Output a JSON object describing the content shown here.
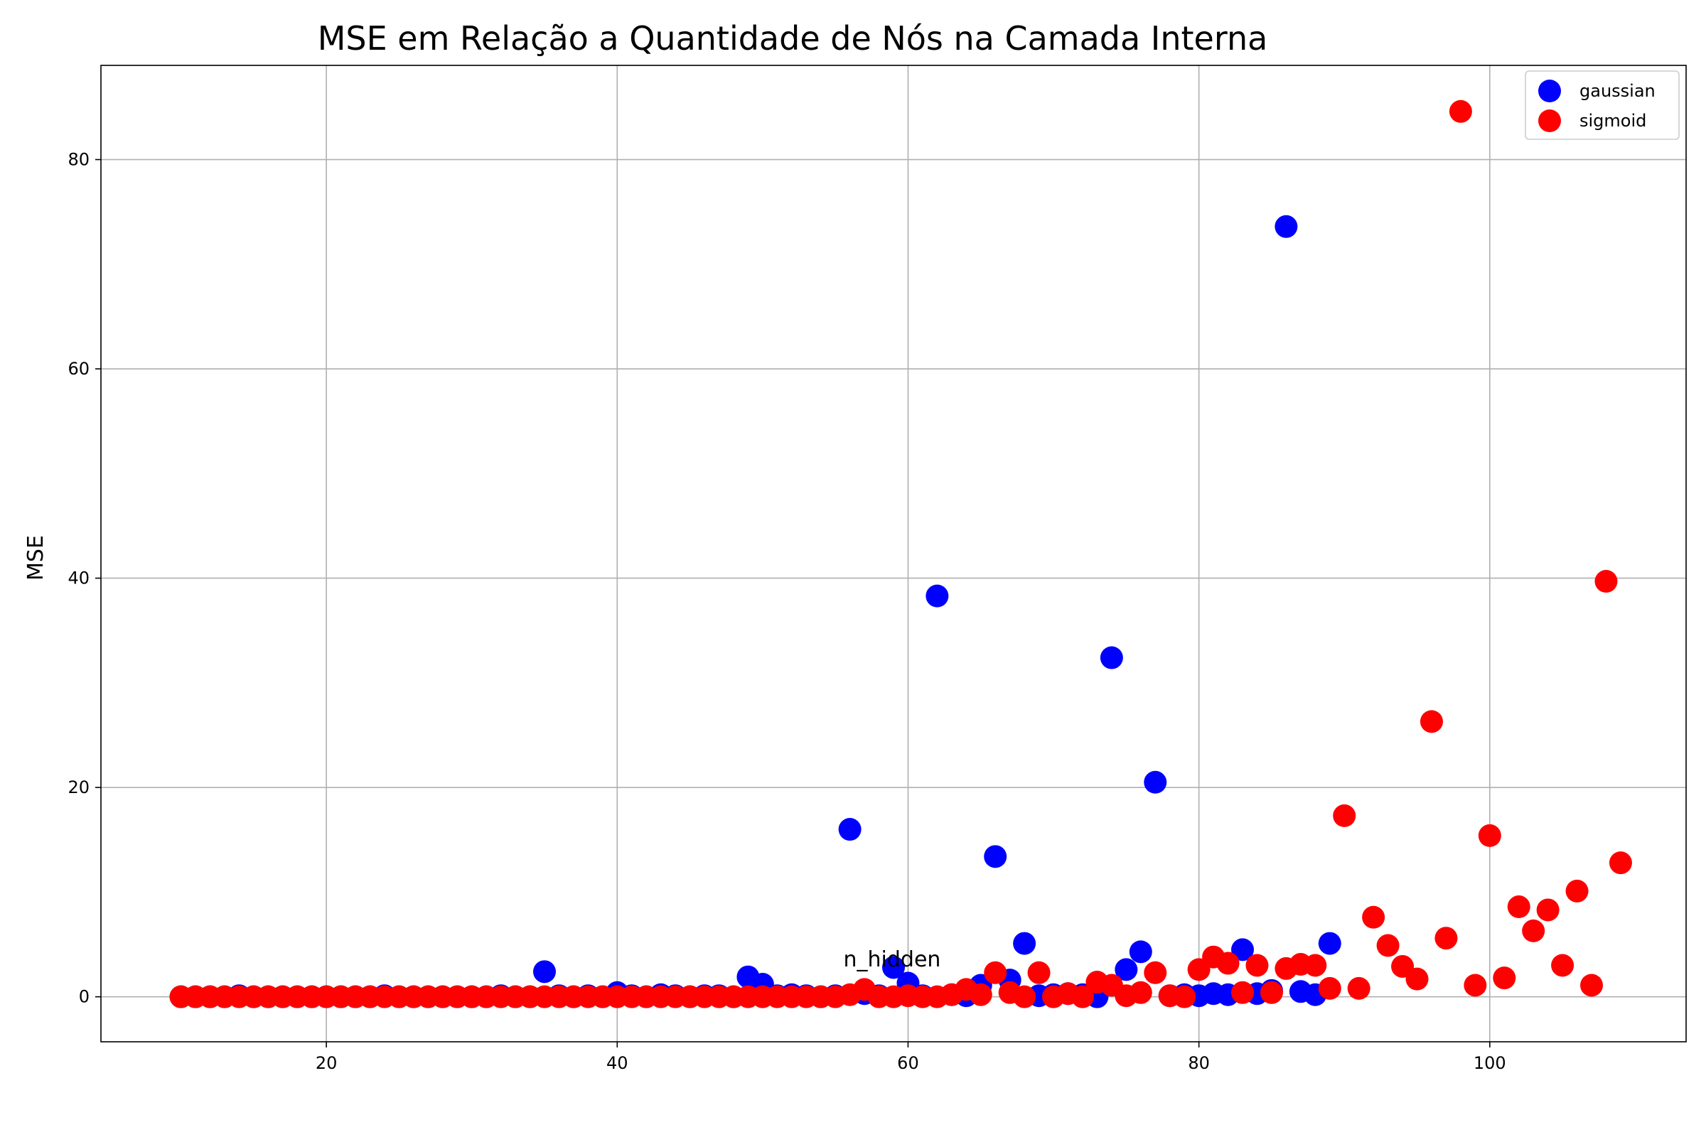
{
  "chart_data": {
    "type": "scatter",
    "title": "MSE em Relação a Quantidade de Nós na Camada Interna",
    "xlabel": "n_hidden",
    "ylabel": "MSE",
    "xlim": [
      4.5,
      113.5
    ],
    "ylim": [
      -4.3,
      89
    ],
    "xticks": [
      20,
      40,
      60,
      80,
      100
    ],
    "yticks": [
      0,
      20,
      40,
      60,
      80
    ],
    "grid": true,
    "legend_position": "top-right",
    "series": [
      {
        "name": "gaussian",
        "color": "#0000ff",
        "points": [
          [
            10,
            0
          ],
          [
            11,
            0
          ],
          [
            12,
            0
          ],
          [
            13,
            0
          ],
          [
            14,
            0.1
          ],
          [
            15,
            0
          ],
          [
            16,
            0
          ],
          [
            17,
            0
          ],
          [
            18,
            0
          ],
          [
            19,
            0
          ],
          [
            20,
            0
          ],
          [
            21,
            0
          ],
          [
            22,
            0
          ],
          [
            23,
            0
          ],
          [
            24,
            0.1
          ],
          [
            25,
            0
          ],
          [
            26,
            0
          ],
          [
            27,
            0
          ],
          [
            28,
            0
          ],
          [
            29,
            0
          ],
          [
            30,
            0
          ],
          [
            31,
            0
          ],
          [
            32,
            0.1
          ],
          [
            33,
            0
          ],
          [
            34,
            0
          ],
          [
            35,
            2.4
          ],
          [
            36,
            0.1
          ],
          [
            37,
            0
          ],
          [
            38,
            0.1
          ],
          [
            39,
            0
          ],
          [
            40,
            0.4
          ],
          [
            41,
            0.1
          ],
          [
            42,
            0
          ],
          [
            43,
            0.2
          ],
          [
            44,
            0.1
          ],
          [
            45,
            0
          ],
          [
            46,
            0.1
          ],
          [
            47,
            0.1
          ],
          [
            48,
            0
          ],
          [
            49,
            1.9
          ],
          [
            50,
            1.2
          ],
          [
            51,
            0.1
          ],
          [
            52,
            0.2
          ],
          [
            53,
            0.1
          ],
          [
            54,
            0
          ],
          [
            55,
            0.1
          ],
          [
            56,
            16.0
          ],
          [
            57,
            0.3
          ],
          [
            58,
            0.1
          ],
          [
            59,
            2.8
          ],
          [
            60,
            1.3
          ],
          [
            61,
            0.1
          ],
          [
            62,
            38.3
          ],
          [
            63,
            0.2
          ],
          [
            64,
            0.1
          ],
          [
            65,
            1.1
          ],
          [
            66,
            13.4
          ],
          [
            67,
            1.6
          ],
          [
            68,
            5.1
          ],
          [
            69,
            0.1
          ],
          [
            70,
            0.2
          ],
          [
            71,
            0.3
          ],
          [
            72,
            0.2
          ],
          [
            73,
            0
          ],
          [
            74,
            32.4
          ],
          [
            75,
            2.6
          ],
          [
            76,
            4.3
          ],
          [
            77,
            20.5
          ],
          [
            78,
            0.1
          ],
          [
            79,
            0.2
          ],
          [
            80,
            0.1
          ],
          [
            81,
            0.3
          ],
          [
            82,
            0.2
          ],
          [
            83,
            4.5
          ],
          [
            84,
            0.3
          ],
          [
            85,
            0.6
          ],
          [
            86,
            73.6
          ],
          [
            87,
            0.5
          ],
          [
            88,
            0.2
          ],
          [
            89,
            5.1
          ]
        ]
      },
      {
        "name": "sigmoid",
        "color": "#ff0000",
        "points": [
          [
            10,
            0
          ],
          [
            11,
            0
          ],
          [
            12,
            0
          ],
          [
            13,
            0
          ],
          [
            14,
            0
          ],
          [
            15,
            0
          ],
          [
            16,
            0
          ],
          [
            17,
            0
          ],
          [
            18,
            0
          ],
          [
            19,
            0
          ],
          [
            20,
            0
          ],
          [
            21,
            0
          ],
          [
            22,
            0
          ],
          [
            23,
            0
          ],
          [
            24,
            0
          ],
          [
            25,
            0
          ],
          [
            26,
            0
          ],
          [
            27,
            0
          ],
          [
            28,
            0
          ],
          [
            29,
            0
          ],
          [
            30,
            0
          ],
          [
            31,
            0
          ],
          [
            32,
            0
          ],
          [
            33,
            0
          ],
          [
            34,
            0
          ],
          [
            35,
            0
          ],
          [
            36,
            0
          ],
          [
            37,
            0
          ],
          [
            38,
            0
          ],
          [
            39,
            0
          ],
          [
            40,
            0
          ],
          [
            41,
            0
          ],
          [
            42,
            0
          ],
          [
            43,
            0
          ],
          [
            44,
            0
          ],
          [
            45,
            0
          ],
          [
            46,
            0
          ],
          [
            47,
            0
          ],
          [
            48,
            0
          ],
          [
            49,
            0
          ],
          [
            50,
            0
          ],
          [
            51,
            0
          ],
          [
            52,
            0
          ],
          [
            53,
            0
          ],
          [
            54,
            0
          ],
          [
            55,
            0
          ],
          [
            56,
            0.2
          ],
          [
            57,
            0.7
          ],
          [
            58,
            0
          ],
          [
            59,
            0
          ],
          [
            60,
            0.1
          ],
          [
            61,
            0
          ],
          [
            62,
            0
          ],
          [
            63,
            0.2
          ],
          [
            64,
            0.7
          ],
          [
            65,
            0.2
          ],
          [
            66,
            2.3
          ],
          [
            67,
            0.4
          ],
          [
            68,
            0
          ],
          [
            69,
            2.3
          ],
          [
            70,
            0
          ],
          [
            71,
            0.3
          ],
          [
            72,
            0
          ],
          [
            73,
            1.4
          ],
          [
            74,
            1.1
          ],
          [
            75,
            0.1
          ],
          [
            76,
            0.4
          ],
          [
            77,
            2.3
          ],
          [
            78,
            0.1
          ],
          [
            79,
            0
          ],
          [
            80,
            2.6
          ],
          [
            81,
            3.8
          ],
          [
            82,
            3.2
          ],
          [
            83,
            0.4
          ],
          [
            84,
            3.0
          ],
          [
            85,
            0.4
          ],
          [
            86,
            2.7
          ],
          [
            87,
            3.1
          ],
          [
            88,
            3.0
          ],
          [
            89,
            0.8
          ],
          [
            90,
            17.3
          ],
          [
            91,
            0.8
          ],
          [
            92,
            7.6
          ],
          [
            93,
            4.9
          ],
          [
            94,
            2.9
          ],
          [
            95,
            1.7
          ],
          [
            96,
            26.3
          ],
          [
            97,
            5.6
          ],
          [
            98,
            84.6
          ],
          [
            99,
            1.1
          ],
          [
            100,
            15.4
          ],
          [
            101,
            1.8
          ],
          [
            102,
            8.6
          ],
          [
            103,
            6.3
          ],
          [
            104,
            8.3
          ],
          [
            105,
            3.0
          ],
          [
            106,
            10.1
          ],
          [
            107,
            1.1
          ],
          [
            108,
            39.7
          ],
          [
            109,
            12.8
          ]
        ]
      }
    ]
  }
}
